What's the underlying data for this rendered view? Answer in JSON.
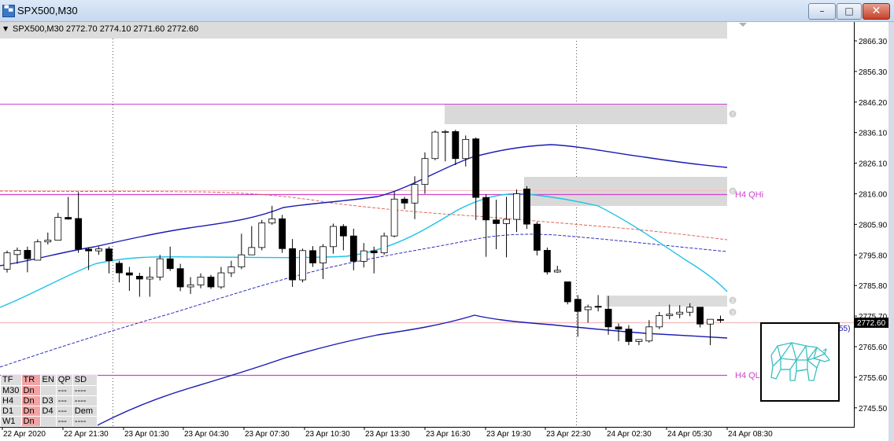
{
  "window": {
    "title": "SPX500,M30"
  },
  "header": {
    "text": "SPX500,M30  2772.70 2774.10 2771.60 2772.60"
  },
  "price_axis": {
    "labels": [
      "2866.30",
      "2856.30",
      "2846.20",
      "2836.10",
      "2826.10",
      "2816.00",
      "2805.90",
      "2795.80",
      "2785.80",
      "2775.70",
      "2765.60",
      "2755.60",
      "2745.50"
    ],
    "current": "2772.60"
  },
  "time_axis": {
    "labels": [
      "22 Apr 2020",
      "22 Apr 21:30",
      "23 Apr 01:30",
      "23 Apr 04:30",
      "23 Apr 07:30",
      "23 Apr 10:30",
      "23 Apr 13:30",
      "23 Apr 16:30",
      "23 Apr 19:30",
      "23 Apr 22:30",
      "24 Apr 02:30",
      "24 Apr 05:30",
      "24 Apr 08:30"
    ]
  },
  "levels": {
    "h4_high": "H4 QHi",
    "h4_low": "H4 QL",
    "partial_label": "55)"
  },
  "zones": {
    "z1": "7",
    "z2": "6",
    "z3": "3",
    "z4": "3"
  },
  "tf_table": {
    "headers": [
      "TF",
      "TR",
      "EN",
      "QP",
      "SD"
    ],
    "rows": [
      [
        "M30",
        "Dn",
        "",
        "---",
        "----"
      ],
      [
        "H4",
        "Dn",
        "D3",
        "---",
        "----"
      ],
      [
        "D1",
        "Dn",
        "D4",
        "---",
        "Dem"
      ],
      [
        "W1",
        "Dn",
        "",
        "---",
        "----"
      ]
    ]
  },
  "colors": {
    "bull": "#ffffff",
    "bear": "#000000",
    "blue_ma": "#1a1ab4",
    "cyan_ma": "#1ec3e8",
    "magenta": "#cc44cc",
    "zone": "#d9d9d9",
    "logo": "#3bbfc0"
  },
  "chart_data": {
    "type": "candlestick",
    "ylim": [
      2741.0,
      2872.0
    ],
    "candles": [
      {
        "o": 2790.6,
        "h": 2797.2,
        "l": 2789.4,
        "c": 2796.4
      },
      {
        "o": 2795.8,
        "h": 2798.3,
        "l": 2792.5,
        "c": 2797.3
      },
      {
        "o": 2797.3,
        "h": 2798.6,
        "l": 2789.5,
        "c": 2794.3
      },
      {
        "o": 2793.8,
        "h": 2801.2,
        "l": 2793.8,
        "c": 2800.3
      },
      {
        "o": 2800.3,
        "h": 2803.6,
        "l": 2799.4,
        "c": 2800.9
      },
      {
        "o": 2800.9,
        "h": 2810.6,
        "l": 2800.9,
        "c": 2809.0
      },
      {
        "o": 2809.0,
        "h": 2816.3,
        "l": 2808.2,
        "c": 2808.4
      },
      {
        "o": 2808.6,
        "h": 2818.0,
        "l": 2796.4,
        "c": 2797.7
      },
      {
        "o": 2797.7,
        "h": 2798.4,
        "l": 2790.3,
        "c": 2797.1
      },
      {
        "o": 2797.1,
        "h": 2798.6,
        "l": 2795.7,
        "c": 2797.8
      },
      {
        "o": 2797.8,
        "h": 2798.6,
        "l": 2789.1,
        "c": 2793.6
      },
      {
        "o": 2792.7,
        "h": 2793.6,
        "l": 2785.9,
        "c": 2789.3
      },
      {
        "o": 2789.3,
        "h": 2791.4,
        "l": 2782.9,
        "c": 2788.5
      },
      {
        "o": 2788.1,
        "h": 2789.3,
        "l": 2780.8,
        "c": 2787.1
      },
      {
        "o": 2787.1,
        "h": 2791.4,
        "l": 2780.8,
        "c": 2787.8
      },
      {
        "o": 2787.8,
        "h": 2795.7,
        "l": 2786.6,
        "c": 2794.3
      },
      {
        "o": 2794.3,
        "h": 2798.6,
        "l": 2790.0,
        "c": 2790.8
      },
      {
        "o": 2790.8,
        "h": 2792.5,
        "l": 2782.8,
        "c": 2784.3
      },
      {
        "o": 2784.3,
        "h": 2787.8,
        "l": 2781.8,
        "c": 2785.0
      },
      {
        "o": 2785.0,
        "h": 2789.1,
        "l": 2783.8,
        "c": 2787.8
      },
      {
        "o": 2787.8,
        "h": 2788.6,
        "l": 2783.6,
        "c": 2784.3
      },
      {
        "o": 2784.3,
        "h": 2791.4,
        "l": 2783.6,
        "c": 2789.3
      },
      {
        "o": 2789.3,
        "h": 2793.6,
        "l": 2787.8,
        "c": 2791.4
      },
      {
        "o": 2791.4,
        "h": 2803.2,
        "l": 2790.6,
        "c": 2795.7
      },
      {
        "o": 2795.7,
        "h": 2805.9,
        "l": 2795.7,
        "c": 2798.3
      },
      {
        "o": 2798.3,
        "h": 2808.1,
        "l": 2797.3,
        "c": 2807.0
      },
      {
        "o": 2807.0,
        "h": 2813.1,
        "l": 2806.4,
        "c": 2808.5
      },
      {
        "o": 2808.5,
        "h": 2809.9,
        "l": 2796.4,
        "c": 2797.9
      },
      {
        "o": 2797.9,
        "h": 2801.3,
        "l": 2784.3,
        "c": 2786.8
      },
      {
        "o": 2786.8,
        "h": 2797.9,
        "l": 2785.9,
        "c": 2797.2
      },
      {
        "o": 2797.2,
        "h": 2798.8,
        "l": 2791.4,
        "c": 2792.8
      },
      {
        "o": 2792.8,
        "h": 2799.5,
        "l": 2787.1,
        "c": 2798.6
      },
      {
        "o": 2798.6,
        "h": 2806.8,
        "l": 2796.1,
        "c": 2805.8
      },
      {
        "o": 2805.8,
        "h": 2806.6,
        "l": 2797.3,
        "c": 2802.4
      },
      {
        "o": 2802.4,
        "h": 2805.0,
        "l": 2790.2,
        "c": 2793.4
      },
      {
        "o": 2793.4,
        "h": 2799.9,
        "l": 2791.2,
        "c": 2797.1
      },
      {
        "o": 2797.1,
        "h": 2798.6,
        "l": 2789.1,
        "c": 2796.4
      },
      {
        "o": 2796.4,
        "h": 2803.6,
        "l": 2795.7,
        "c": 2802.4
      },
      {
        "o": 2802.4,
        "h": 2818.2,
        "l": 2801.9,
        "c": 2815.5
      },
      {
        "o": 2815.5,
        "h": 2816.3,
        "l": 2811.9,
        "c": 2814.1
      },
      {
        "o": 2814.1,
        "h": 2823.6,
        "l": 2808.4,
        "c": 2820.7
      },
      {
        "o": 2820.7,
        "h": 2832.1,
        "l": 2817.4,
        "c": 2829.9
      },
      {
        "o": 2829.9,
        "h": 2839.9,
        "l": 2829.3,
        "c": 2839.3
      },
      {
        "o": 2839.3,
        "h": 2840.1,
        "l": 2828.9,
        "c": 2839.5
      },
      {
        "o": 2839.5,
        "h": 2840.1,
        "l": 2827.6,
        "c": 2829.9
      },
      {
        "o": 2829.9,
        "h": 2838.1,
        "l": 2827.1,
        "c": 2836.7
      },
      {
        "o": 2836.9,
        "h": 2837.4,
        "l": 2808.1,
        "c": 2816.1
      },
      {
        "o": 2816.1,
        "h": 2817.2,
        "l": 2795.0,
        "c": 2808.1
      },
      {
        "o": 2808.1,
        "h": 2815.3,
        "l": 2797.7,
        "c": 2806.8
      },
      {
        "o": 2806.8,
        "h": 2816.3,
        "l": 2794.8,
        "c": 2808.3
      },
      {
        "o": 2808.3,
        "h": 2818.9,
        "l": 2803.8,
        "c": 2817.4
      },
      {
        "o": 2819.1,
        "h": 2820.1,
        "l": 2804.9,
        "c": 2806.6
      },
      {
        "o": 2806.6,
        "h": 2807.4,
        "l": 2795.5,
        "c": 2797.3
      },
      {
        "o": 2797.3,
        "h": 2798.3,
        "l": 2788.7,
        "c": 2789.6
      },
      {
        "o": 2789.6,
        "h": 2791.8,
        "l": 2789.3,
        "c": 2790.2
      },
      {
        "o": 2786.1,
        "h": 2786.1,
        "l": 2778.1,
        "c": 2779.0
      },
      {
        "o": 2779.9,
        "h": 2781.4,
        "l": 2766.6,
        "c": 2775.6
      },
      {
        "o": 2776.2,
        "h": 2778.0,
        "l": 2771.6,
        "c": 2777.2
      },
      {
        "o": 2777.4,
        "h": 2781.4,
        "l": 2775.6,
        "c": 2777.1
      },
      {
        "o": 2776.4,
        "h": 2781.1,
        "l": 2767.3,
        "c": 2770.1
      },
      {
        "o": 2770.1,
        "h": 2771.3,
        "l": 2765.0,
        "c": 2769.3
      },
      {
        "o": 2769.3,
        "h": 2770.7,
        "l": 2763.6,
        "c": 2764.9
      },
      {
        "o": 2764.9,
        "h": 2765.7,
        "l": 2763.6,
        "c": 2765.6
      },
      {
        "o": 2765.1,
        "h": 2772.5,
        "l": 2764.5,
        "c": 2770.1
      },
      {
        "o": 2770.1,
        "h": 2775.4,
        "l": 2769.3,
        "c": 2774.1
      },
      {
        "o": 2774.1,
        "h": 2778.0,
        "l": 2772.8,
        "c": 2774.6
      },
      {
        "o": 2774.6,
        "h": 2777.8,
        "l": 2773.2,
        "c": 2775.3
      },
      {
        "o": 2775.3,
        "h": 2778.5,
        "l": 2773.9,
        "c": 2777.1
      },
      {
        "o": 2777.1,
        "h": 2777.1,
        "l": 2769.9,
        "c": 2771.1
      },
      {
        "o": 2771.1,
        "h": 2772.8,
        "l": 2763.6,
        "c": 2772.8
      },
      {
        "o": 2772.7,
        "h": 2774.1,
        "l": 2771.6,
        "c": 2772.6
      }
    ]
  }
}
